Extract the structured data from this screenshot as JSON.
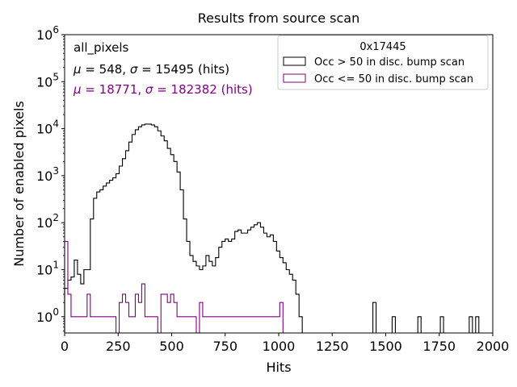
{
  "chart_data": {
    "type": "histogram",
    "title": "Results from source scan",
    "xlabel": "Hits",
    "ylabel": "Number of enabled pixels",
    "xlim": [
      0,
      2000
    ],
    "ylim": [
      0.45,
      1000000
    ],
    "yscale": "log",
    "bin_width": 15,
    "x_ticks": [
      {
        "value": 0,
        "label": "0"
      },
      {
        "value": 250,
        "label": "250"
      },
      {
        "value": 500,
        "label": "500"
      },
      {
        "value": 750,
        "label": "750"
      },
      {
        "value": 1000,
        "label": "1000"
      },
      {
        "value": 1250,
        "label": "1250"
      },
      {
        "value": 1500,
        "label": "1500"
      },
      {
        "value": 1750,
        "label": "1750"
      },
      {
        "value": 2000,
        "label": "2000"
      }
    ],
    "y_ticks": [
      {
        "value": 1,
        "base": "10",
        "exp": "0"
      },
      {
        "value": 10,
        "base": "10",
        "exp": "1"
      },
      {
        "value": 100,
        "base": "10",
        "exp": "2"
      },
      {
        "value": 1000,
        "base": "10",
        "exp": "3"
      },
      {
        "value": 10000,
        "base": "10",
        "exp": "4"
      },
      {
        "value": 100000,
        "base": "10",
        "exp": "5"
      },
      {
        "value": 1000000,
        "base": "10",
        "exp": "6"
      }
    ],
    "annotations": {
      "label": "all_pixels",
      "stats_black": {
        "mu": "548",
        "sigma": "15495",
        "unit": "(hits)"
      },
      "stats_purple": {
        "mu": "18771",
        "sigma": "182382",
        "unit": "(hits)"
      }
    },
    "legend": {
      "title": "0x17445",
      "placement": "top-right",
      "entries": [
        {
          "label": "Occ > 50 in disc. bump scan",
          "color": "#000000"
        },
        {
          "label": "Occ <= 50 in disc. bump scan",
          "color": "#800080"
        }
      ]
    },
    "series": [
      {
        "name": "Occ > 50 in disc. bump scan",
        "color": "#000000",
        "x_start": 0,
        "values": [
          4,
          6,
          7,
          16,
          8,
          5,
          10,
          10,
          120,
          330,
          450,
          500,
          600,
          700,
          800,
          900,
          1100,
          1600,
          2300,
          3400,
          5200,
          7500,
          9500,
          11000,
          12000,
          12500,
          12500,
          12000,
          11000,
          9000,
          7000,
          5500,
          3800,
          2800,
          2000,
          1200,
          500,
          120,
          40,
          20,
          15,
          12,
          10,
          12,
          20,
          15,
          12,
          18,
          30,
          40,
          45,
          40,
          45,
          65,
          70,
          60,
          60,
          70,
          80,
          90,
          100,
          80,
          60,
          50,
          55,
          40,
          25,
          18,
          14,
          10,
          8,
          6,
          3,
          1,
          0,
          0,
          0,
          0,
          0,
          0,
          0,
          0,
          0,
          0,
          0,
          0,
          0,
          0,
          0,
          0,
          0,
          0,
          0,
          0,
          0,
          0,
          2,
          0,
          0,
          0,
          0,
          0,
          1,
          0,
          0,
          0,
          0,
          0,
          0,
          0,
          1,
          0,
          0,
          0,
          0,
          0,
          0,
          1,
          0,
          0,
          0,
          0,
          0,
          0,
          0,
          0,
          1,
          0,
          1
        ]
      },
      {
        "name": "Occ <= 50 in disc. bump scan",
        "color": "#800080",
        "x_start": 0,
        "values": [
          40,
          3,
          1,
          1,
          1,
          1,
          1,
          3,
          1,
          1,
          1,
          1,
          1,
          1,
          1,
          1,
          0,
          2,
          3,
          2,
          1,
          1,
          3,
          2,
          5,
          1,
          1,
          1,
          1,
          0,
          3,
          3,
          2,
          3,
          2,
          1,
          1,
          1,
          1,
          1,
          1,
          0,
          2,
          1,
          1,
          1,
          1,
          1,
          1,
          1,
          1,
          1,
          1,
          1,
          1,
          1,
          1,
          1,
          1,
          1,
          1,
          1,
          1,
          1,
          1,
          1,
          1,
          2,
          0,
          0,
          0,
          0,
          0,
          0,
          0,
          0,
          0,
          0,
          0,
          0,
          0,
          0,
          0,
          0,
          0,
          0,
          0,
          0,
          0,
          0,
          0,
          0,
          0,
          0,
          0,
          0,
          0,
          0,
          0,
          0,
          0,
          0,
          0,
          0,
          0,
          0,
          0,
          0,
          0,
          0,
          0,
          0,
          0,
          0,
          0,
          0,
          0,
          0,
          0,
          0,
          0,
          0,
          0,
          0,
          0,
          0,
          0,
          0,
          0,
          0
        ]
      }
    ]
  }
}
